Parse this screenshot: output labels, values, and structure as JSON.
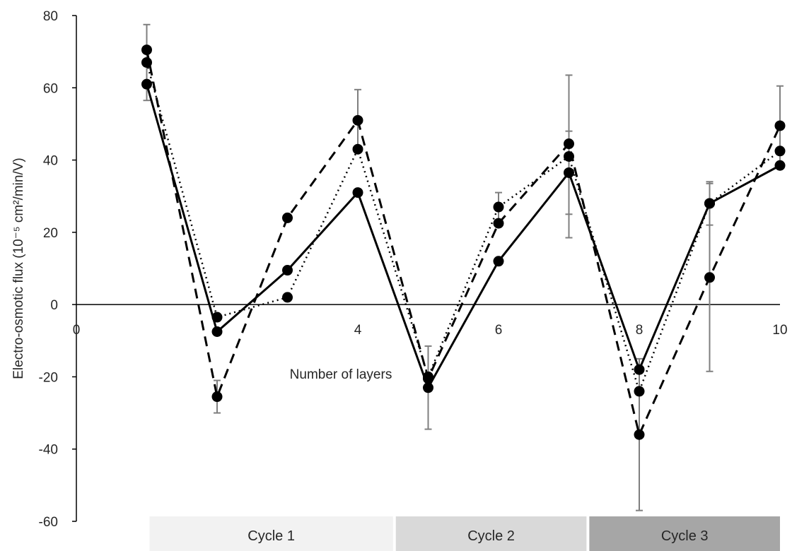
{
  "chart_data": {
    "type": "line",
    "xlabel": "Number of layers",
    "ylabel": "Electro-osmotic flux (10⁻⁵ cm²/min/V)",
    "xlim": [
      0,
      10
    ],
    "ylim": [
      -60,
      80
    ],
    "x_ticks": [
      "0",
      "4",
      "6",
      "8",
      "10"
    ],
    "x_tick_values": [
      0,
      4,
      6,
      8,
      10
    ],
    "y_ticks": [
      "80",
      "60",
      "40",
      "20",
      "0",
      "-20",
      "-40",
      "-60"
    ],
    "y_tick_values": [
      80,
      60,
      40,
      20,
      0,
      -20,
      -40,
      -60
    ],
    "grid": false,
    "x": [
      1,
      2,
      3,
      4,
      5,
      6,
      7,
      8,
      9,
      10
    ],
    "series": [
      {
        "style": "solid",
        "values": [
          61,
          -7.5,
          9.5,
          31,
          -23,
          12,
          36.5,
          -18,
          28,
          38.5
        ],
        "error": [
          0,
          0,
          0,
          0,
          11.5,
          0,
          11.5,
          0,
          0,
          0
        ]
      },
      {
        "style": "dashed",
        "values": [
          70.5,
          -25.5,
          24,
          51,
          -20.5,
          22.5,
          44.5,
          -36,
          7.5,
          49.5
        ],
        "error": [
          0,
          4.5,
          0,
          8.5,
          0,
          0,
          0,
          21,
          26,
          11
        ]
      },
      {
        "style": "dotted",
        "values": [
          67,
          -3.5,
          2,
          43,
          -20,
          27,
          41,
          -24,
          28,
          42.5
        ],
        "error": [
          10.5,
          0,
          0,
          0,
          0,
          4,
          22.5,
          0,
          6,
          0
        ]
      }
    ],
    "cycles": [
      {
        "label": "Cycle 1",
        "from": 1,
        "to": 4.5,
        "color": "#f2f2f2"
      },
      {
        "label": "Cycle 2",
        "from": 4.5,
        "to": 7.25,
        "color": "#d9d9d9"
      },
      {
        "label": "Cycle 3",
        "from": 7.25,
        "to": 10,
        "color": "#a6a6a6"
      }
    ],
    "colors": {
      "line": "#000000",
      "error_bar": "#7f7f7f",
      "axis": "#000000"
    }
  }
}
